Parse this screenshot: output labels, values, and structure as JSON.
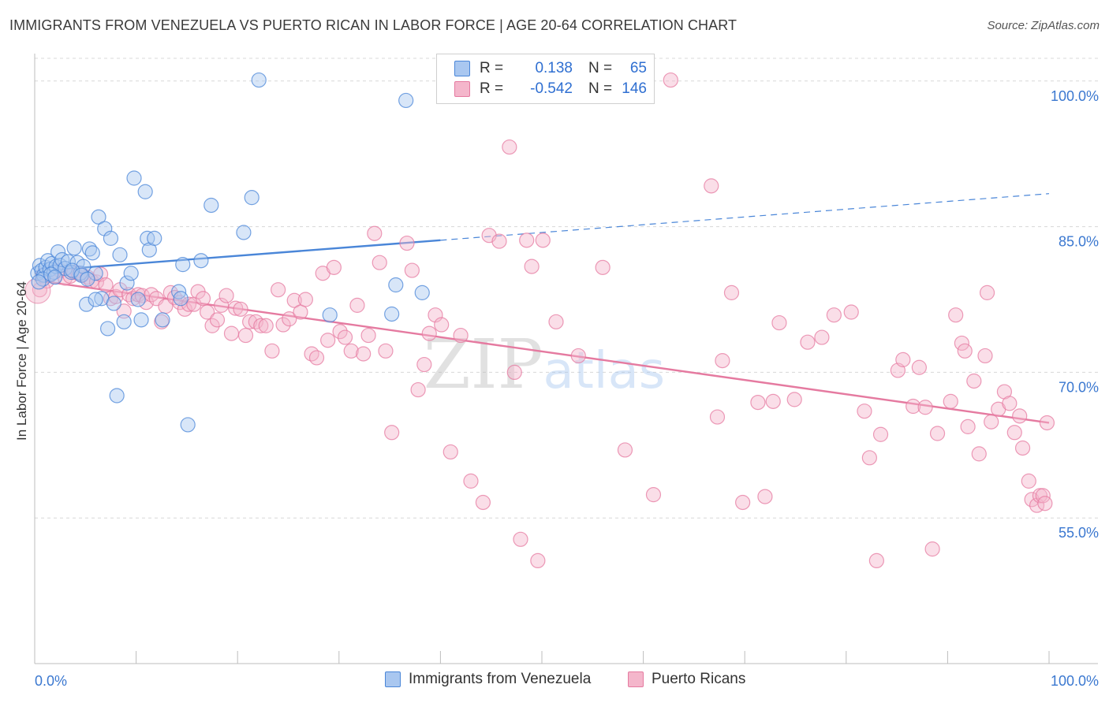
{
  "title": "IMMIGRANTS FROM VENEZUELA VS PUERTO RICAN IN LABOR FORCE | AGE 20-64 CORRELATION CHART",
  "source": "Source: ZipAtlas.com",
  "watermark": "ZIPatlas",
  "colors": {
    "blue": "#4a86d8",
    "blue_fill": "#a9c7f0",
    "pink": "#e57aa0",
    "pink_fill": "#f4b6cb",
    "tick_label": "#3b78d0",
    "grid": "#d8d8d8"
  },
  "legend": {
    "rows": [
      {
        "r_label": "R =",
        "r_value": "0.138",
        "n_label": "N =",
        "n_value": "65"
      },
      {
        "r_label": "R =",
        "r_value": "-0.542",
        "n_label": "N =",
        "n_value": "146"
      }
    ]
  },
  "bottom_legend": [
    "Immigrants from Venezuela",
    "Puerto Ricans"
  ],
  "chart_data": {
    "type": "scatter",
    "xlabel": "",
    "ylabel": "In Labor Force | Age 20-64",
    "xlim": [
      0,
      100
    ],
    "ylim": [
      40,
      102.5
    ],
    "x_tick_labels": [
      "0.0%",
      "100.0%"
    ],
    "y_ticks": [
      55,
      70,
      85,
      100
    ],
    "y_tick_labels": [
      "55.0%",
      "70.0%",
      "85.0%",
      "100.0%"
    ],
    "grid": "horizontal dashed",
    "legend_position": "top-center",
    "series": [
      {
        "name": "Immigrants from Venezuela",
        "color": "blue",
        "trend": {
          "x0": 0,
          "y0": 80.4,
          "x1": 40,
          "y1": 83.6,
          "dash_to": 100,
          "dash_y": 88.4
        },
        "points": [
          [
            0.3,
            80.2
          ],
          [
            0.5,
            81.0
          ],
          [
            0.7,
            80.5
          ],
          [
            0.9,
            80.0
          ],
          [
            1.1,
            80.8
          ],
          [
            1.3,
            81.5
          ],
          [
            1.5,
            80.6
          ],
          [
            1.7,
            81.2
          ],
          [
            1.9,
            80.3
          ],
          [
            2.1,
            80.9
          ],
          [
            2.3,
            82.4
          ],
          [
            2.5,
            81.0
          ],
          [
            2.7,
            81.6
          ],
          [
            3.0,
            80.7
          ],
          [
            3.3,
            81.4
          ],
          [
            3.6,
            80.3
          ],
          [
            3.9,
            82.8
          ],
          [
            4.2,
            81.3
          ],
          [
            4.5,
            80.2
          ],
          [
            4.8,
            80.9
          ],
          [
            5.1,
            77.0
          ],
          [
            5.4,
            82.7
          ],
          [
            5.7,
            82.3
          ],
          [
            6.0,
            80.2
          ],
          [
            6.3,
            86.0
          ],
          [
            6.6,
            77.6
          ],
          [
            6.9,
            84.8
          ],
          [
            7.2,
            74.5
          ],
          [
            7.5,
            83.8
          ],
          [
            7.8,
            77.1
          ],
          [
            8.1,
            67.6
          ],
          [
            8.4,
            82.1
          ],
          [
            8.8,
            75.2
          ],
          [
            9.1,
            79.2
          ],
          [
            9.5,
            80.2
          ],
          [
            9.8,
            90.0
          ],
          [
            10.2,
            77.5
          ],
          [
            10.5,
            75.4
          ],
          [
            10.9,
            88.6
          ],
          [
            11.1,
            83.8
          ],
          [
            11.3,
            82.6
          ],
          [
            11.8,
            83.8
          ],
          [
            12.6,
            75.4
          ],
          [
            14.2,
            78.3
          ],
          [
            14.4,
            77.6
          ],
          [
            14.6,
            81.1
          ],
          [
            15.1,
            64.6
          ],
          [
            16.4,
            81.5
          ],
          [
            17.4,
            87.2
          ],
          [
            20.6,
            84.4
          ],
          [
            21.4,
            88.0
          ],
          [
            22.1,
            100.1
          ],
          [
            29.1,
            75.9
          ],
          [
            35.2,
            76.0
          ],
          [
            35.6,
            79.0
          ],
          [
            36.6,
            98.0
          ],
          [
            38.2,
            78.2
          ],
          [
            0.8,
            79.6
          ],
          [
            1.6,
            80.1
          ],
          [
            2.0,
            79.8
          ],
          [
            3.7,
            80.5
          ],
          [
            4.6,
            80.0
          ],
          [
            5.2,
            79.6
          ],
          [
            6.0,
            77.5
          ],
          [
            0.4,
            79.3
          ]
        ]
      },
      {
        "name": "Puerto Ricans",
        "color": "pink",
        "trend": {
          "x0": 0,
          "y0": 79.5,
          "x1": 100,
          "y1": 64.8
        },
        "points": [
          [
            0.5,
            78.5
          ],
          [
            0.8,
            80.0
          ],
          [
            1.2,
            79.4
          ],
          [
            1.6,
            80.1
          ],
          [
            2.0,
            79.9
          ],
          [
            2.5,
            80.5
          ],
          [
            3.0,
            79.7
          ],
          [
            3.5,
            79.9
          ],
          [
            3.9,
            80.3
          ],
          [
            4.3,
            80.2
          ],
          [
            4.7,
            80.0
          ],
          [
            5.2,
            79.8
          ],
          [
            5.6,
            79.4
          ],
          [
            6.1,
            79.3
          ],
          [
            6.5,
            80.1
          ],
          [
            7.0,
            79.0
          ],
          [
            7.5,
            77.6
          ],
          [
            8.0,
            77.8
          ],
          [
            8.4,
            78.5
          ],
          [
            8.8,
            76.3
          ],
          [
            9.3,
            78.0
          ],
          [
            9.7,
            77.6
          ],
          [
            10.2,
            78.0
          ],
          [
            10.6,
            77.9
          ],
          [
            11.0,
            77.2
          ],
          [
            11.5,
            78.0
          ],
          [
            12.0,
            77.6
          ],
          [
            12.5,
            75.2
          ],
          [
            12.9,
            76.8
          ],
          [
            13.4,
            78.2
          ],
          [
            13.8,
            77.7
          ],
          [
            14.3,
            77.2
          ],
          [
            14.8,
            76.5
          ],
          [
            15.2,
            77.0
          ],
          [
            15.7,
            77.0
          ],
          [
            16.1,
            78.3
          ],
          [
            16.6,
            77.6
          ],
          [
            17.0,
            76.2
          ],
          [
            17.5,
            74.8
          ],
          [
            18.0,
            75.4
          ],
          [
            18.4,
            76.9
          ],
          [
            18.9,
            77.9
          ],
          [
            19.4,
            74.0
          ],
          [
            19.8,
            76.6
          ],
          [
            20.3,
            76.5
          ],
          [
            20.8,
            73.8
          ],
          [
            21.2,
            75.2
          ],
          [
            21.8,
            75.2
          ],
          [
            22.3,
            74.8
          ],
          [
            22.8,
            74.8
          ],
          [
            23.4,
            72.2
          ],
          [
            24.0,
            78.5
          ],
          [
            24.5,
            74.9
          ],
          [
            25.1,
            75.5
          ],
          [
            25.6,
            77.4
          ],
          [
            26.2,
            76.2
          ],
          [
            26.7,
            77.5
          ],
          [
            27.3,
            71.9
          ],
          [
            27.8,
            71.5
          ],
          [
            28.4,
            80.2
          ],
          [
            28.9,
            73.3
          ],
          [
            29.5,
            80.8
          ],
          [
            30.1,
            74.2
          ],
          [
            30.6,
            73.6
          ],
          [
            31.2,
            72.2
          ],
          [
            31.8,
            76.9
          ],
          [
            32.4,
            71.9
          ],
          [
            32.9,
            73.8
          ],
          [
            33.5,
            84.3
          ],
          [
            34.0,
            81.3
          ],
          [
            34.6,
            72.2
          ],
          [
            35.2,
            63.8
          ],
          [
            36.7,
            83.3
          ],
          [
            37.2,
            80.5
          ],
          [
            37.8,
            68.2
          ],
          [
            38.4,
            70.8
          ],
          [
            38.9,
            74.0
          ],
          [
            39.5,
            75.9
          ],
          [
            40.1,
            74.9
          ],
          [
            41.0,
            61.8
          ],
          [
            42.0,
            73.8
          ],
          [
            43.0,
            58.8
          ],
          [
            44.2,
            56.6
          ],
          [
            44.8,
            84.1
          ],
          [
            45.8,
            83.5
          ],
          [
            46.8,
            93.2
          ],
          [
            47.3,
            70.0
          ],
          [
            47.9,
            52.8
          ],
          [
            48.5,
            83.6
          ],
          [
            49.0,
            80.9
          ],
          [
            49.6,
            50.6
          ],
          [
            50.1,
            83.6
          ],
          [
            51.4,
            75.2
          ],
          [
            53.6,
            71.7
          ],
          [
            56.0,
            80.8
          ],
          [
            58.2,
            62.0
          ],
          [
            61.0,
            57.4
          ],
          [
            62.7,
            100.1
          ],
          [
            66.7,
            89.2
          ],
          [
            67.3,
            65.4
          ],
          [
            67.8,
            71.2
          ],
          [
            68.7,
            78.2
          ],
          [
            69.8,
            56.6
          ],
          [
            71.3,
            66.9
          ],
          [
            72.0,
            57.2
          ],
          [
            72.8,
            67.0
          ],
          [
            73.4,
            75.1
          ],
          [
            74.9,
            67.2
          ],
          [
            76.2,
            73.1
          ],
          [
            77.6,
            73.6
          ],
          [
            78.8,
            75.9
          ],
          [
            80.5,
            76.2
          ],
          [
            81.8,
            66.0
          ],
          [
            82.3,
            61.2
          ],
          [
            83.0,
            50.6
          ],
          [
            83.4,
            63.6
          ],
          [
            85.1,
            70.2
          ],
          [
            85.6,
            71.3
          ],
          [
            86.6,
            66.5
          ],
          [
            87.2,
            70.5
          ],
          [
            87.8,
            66.4
          ],
          [
            88.5,
            51.8
          ],
          [
            89.0,
            63.7
          ],
          [
            90.3,
            67.0
          ],
          [
            90.8,
            75.9
          ],
          [
            91.4,
            73.0
          ],
          [
            91.7,
            72.2
          ],
          [
            92.0,
            64.4
          ],
          [
            92.6,
            69.1
          ],
          [
            93.1,
            61.6
          ],
          [
            93.7,
            71.7
          ],
          [
            93.9,
            78.2
          ],
          [
            94.3,
            64.9
          ],
          [
            95.0,
            66.2
          ],
          [
            95.6,
            68.0
          ],
          [
            96.1,
            66.8
          ],
          [
            96.6,
            63.8
          ],
          [
            97.1,
            65.5
          ],
          [
            97.4,
            62.2
          ],
          [
            98.0,
            58.8
          ],
          [
            98.3,
            56.9
          ],
          [
            98.8,
            56.3
          ],
          [
            99.1,
            57.3
          ],
          [
            99.4,
            57.3
          ],
          [
            99.6,
            56.5
          ],
          [
            99.8,
            64.8
          ]
        ]
      }
    ]
  }
}
